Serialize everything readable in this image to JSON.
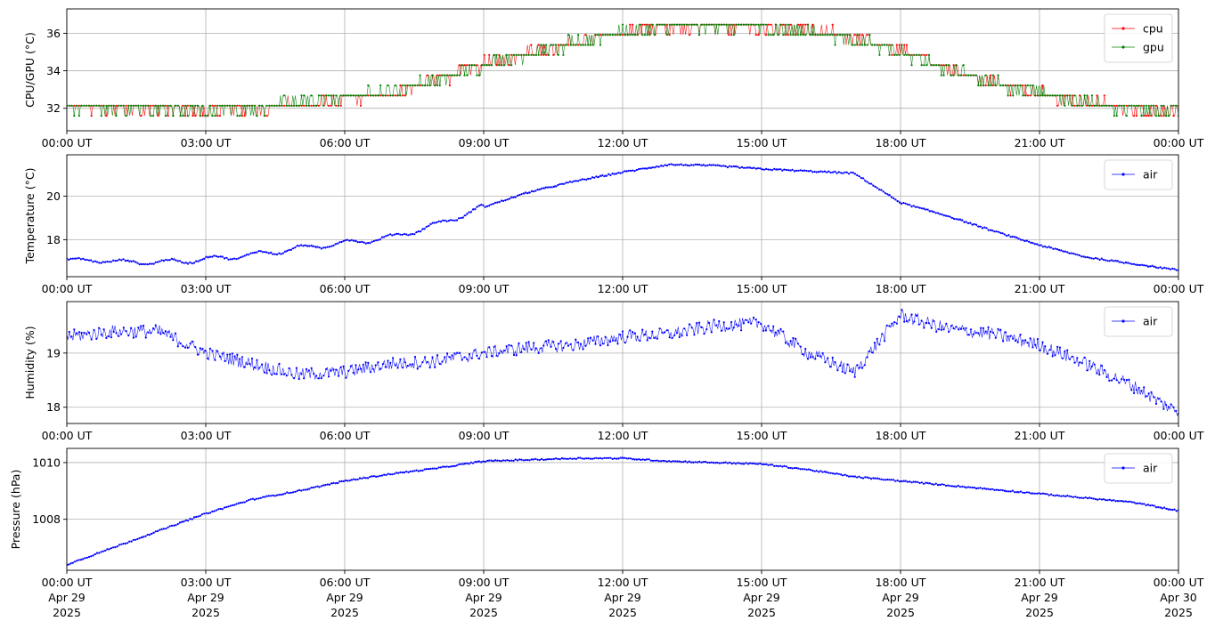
{
  "chart_data": [
    {
      "type": "line",
      "ylabel": "CPU/GPU (°C)",
      "ylim": [
        30.8,
        37.3
      ],
      "yticks": [
        32,
        34,
        36
      ],
      "x_ticks": [
        "00:00 UT",
        "03:00 UT",
        "06:00 UT",
        "09:00 UT",
        "12:00 UT",
        "15:00 UT",
        "18:00 UT",
        "21:00 UT",
        "00:00 UT"
      ],
      "legend": "top-right",
      "grid": true,
      "series": [
        {
          "name": "cpu",
          "color": "#ff0000",
          "x_hours": [
            0,
            1,
            2,
            3,
            4,
            5,
            6,
            7,
            8,
            9,
            10,
            11,
            12,
            13,
            14,
            15,
            16,
            17,
            18,
            19,
            20,
            21,
            22,
            23,
            24
          ],
          "values": [
            32.1,
            32.0,
            32.0,
            31.9,
            32.0,
            32.2,
            32.5,
            32.8,
            33.5,
            34.3,
            35.0,
            35.5,
            36.0,
            36.3,
            36.4,
            36.3,
            36.1,
            35.8,
            35.1,
            34.2,
            33.4,
            32.8,
            32.3,
            32.0,
            31.8
          ]
        },
        {
          "name": "gpu",
          "color": "#008000",
          "x_hours": [
            0,
            1,
            2,
            3,
            4,
            5,
            6,
            7,
            8,
            9,
            10,
            11,
            12,
            13,
            14,
            15,
            16,
            17,
            18,
            19,
            20,
            21,
            22,
            23,
            24
          ],
          "values": [
            32.1,
            32.0,
            31.9,
            31.9,
            32.0,
            32.3,
            32.6,
            32.9,
            33.5,
            34.3,
            34.9,
            35.5,
            36.0,
            36.3,
            36.4,
            36.3,
            36.1,
            35.7,
            35.0,
            34.1,
            33.4,
            32.8,
            32.3,
            32.0,
            31.9
          ]
        }
      ]
    },
    {
      "type": "line",
      "ylabel": "Temperature (°C)",
      "ylim": [
        16.3,
        21.9
      ],
      "yticks": [
        18,
        20
      ],
      "x_ticks": [
        "00:00 UT",
        "03:00 UT",
        "06:00 UT",
        "09:00 UT",
        "12:00 UT",
        "15:00 UT",
        "18:00 UT",
        "21:00 UT",
        "00:00 UT"
      ],
      "legend": "top-right",
      "grid": true,
      "series": [
        {
          "name": "air",
          "color": "#0000ff",
          "x_hours": [
            0,
            1,
            2,
            3,
            4,
            5,
            6,
            7,
            8,
            9,
            10,
            11,
            12,
            13,
            14,
            15,
            16,
            17,
            18,
            19,
            20,
            21,
            22,
            23,
            24
          ],
          "values": [
            17.1,
            17.0,
            16.95,
            17.1,
            17.3,
            17.6,
            17.85,
            18.1,
            18.7,
            19.5,
            20.2,
            20.7,
            21.1,
            21.45,
            21.4,
            21.25,
            21.15,
            21.05,
            19.7,
            19.1,
            18.4,
            17.75,
            17.2,
            16.9,
            16.6
          ]
        }
      ]
    },
    {
      "type": "line",
      "ylabel": "Humidity (%)",
      "ylim": [
        17.7,
        19.95
      ],
      "yticks": [
        18,
        19
      ],
      "x_ticks": [
        "00:00 UT",
        "03:00 UT",
        "06:00 UT",
        "09:00 UT",
        "12:00 UT",
        "15:00 UT",
        "18:00 UT",
        "21:00 UT",
        "00:00 UT"
      ],
      "legend": "top-right",
      "grid": true,
      "series": [
        {
          "name": "air",
          "color": "#0000ff",
          "x_hours": [
            0,
            1,
            2,
            3,
            4,
            5,
            6,
            7,
            8,
            9,
            10,
            11,
            12,
            13,
            14,
            15,
            16,
            17,
            18,
            19,
            20,
            21,
            22,
            23,
            24
          ],
          "values": [
            19.3,
            19.4,
            19.4,
            19.0,
            18.8,
            18.6,
            18.65,
            18.8,
            18.85,
            19.0,
            19.1,
            19.15,
            19.3,
            19.35,
            19.5,
            19.55,
            19.0,
            18.65,
            19.7,
            19.45,
            19.35,
            19.15,
            18.8,
            18.4,
            17.9
          ]
        }
      ]
    },
    {
      "type": "line",
      "ylabel": "Pressure (hPa)",
      "ylim": [
        1006.2,
        1010.5
      ],
      "yticks": [
        1008,
        1010
      ],
      "x_ticks": [
        "00:00 UT",
        "03:00 UT",
        "06:00 UT",
        "09:00 UT",
        "12:00 UT",
        "15:00 UT",
        "18:00 UT",
        "21:00 UT",
        "00:00 UT"
      ],
      "x_dates": [
        "Apr 29",
        "Apr 29",
        "Apr 29",
        "Apr 29",
        "Apr 29",
        "Apr 29",
        "Apr 29",
        "Apr 29",
        "Apr 30"
      ],
      "x_years": [
        "2025",
        "2025",
        "2025",
        "2025",
        "2025",
        "2025",
        "2025",
        "2025",
        "2025"
      ],
      "legend": "top-right",
      "grid": true,
      "series": [
        {
          "name": "air",
          "color": "#0000ff",
          "x_hours": [
            0,
            1,
            2,
            3,
            4,
            5,
            6,
            7,
            8,
            9,
            10,
            11,
            12,
            13,
            14,
            15,
            16,
            17,
            18,
            19,
            20,
            21,
            22,
            23,
            24
          ],
          "values": [
            1006.4,
            1007.0,
            1007.6,
            1008.2,
            1008.7,
            1009.0,
            1009.35,
            1009.6,
            1009.8,
            1010.05,
            1010.1,
            1010.15,
            1010.15,
            1010.05,
            1010.0,
            1009.95,
            1009.75,
            1009.5,
            1009.35,
            1009.2,
            1009.05,
            1008.9,
            1008.75,
            1008.6,
            1008.3
          ]
        }
      ]
    }
  ]
}
